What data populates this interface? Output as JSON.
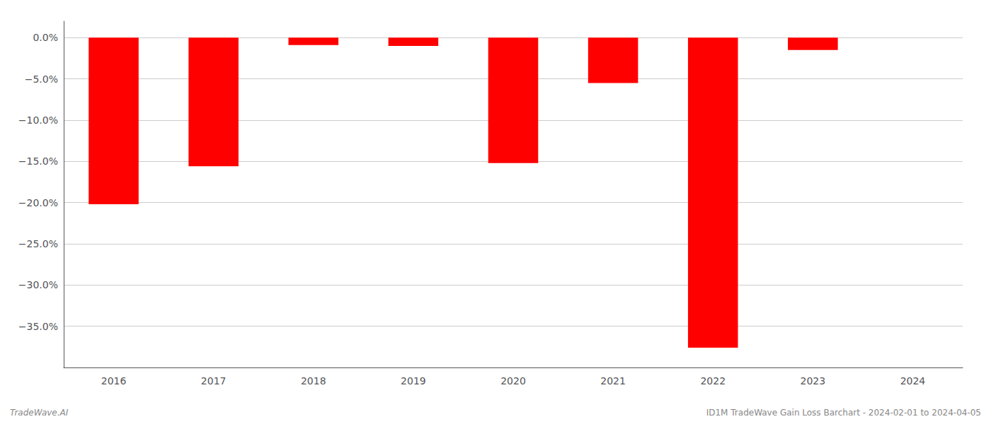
{
  "chart_data": {
    "type": "bar",
    "categories": [
      "2016",
      "2017",
      "2018",
      "2019",
      "2020",
      "2021",
      "2022",
      "2023",
      "2024"
    ],
    "values": [
      -20.2,
      -15.6,
      -0.9,
      -1.0,
      -15.2,
      -5.5,
      -37.6,
      -1.5,
      0.0
    ],
    "color": "#ff0000",
    "ylim": [
      -40,
      2
    ],
    "yticks": [
      {
        "value": 0.0,
        "label": "0.0%"
      },
      {
        "value": -5.0,
        "label": "−5.0%"
      },
      {
        "value": -10.0,
        "label": "−10.0%"
      },
      {
        "value": -15.0,
        "label": "−15.0%"
      },
      {
        "value": -20.0,
        "label": "−20.0%"
      },
      {
        "value": -25.0,
        "label": "−25.0%"
      },
      {
        "value": -30.0,
        "label": "−30.0%"
      },
      {
        "value": -35.0,
        "label": "−35.0%"
      }
    ],
    "grid": true,
    "annotations": [
      "TradeWave.AI",
      "ID1M TradeWave Gain Loss Barchart - 2024-02-01 to 2024-04-05"
    ]
  }
}
